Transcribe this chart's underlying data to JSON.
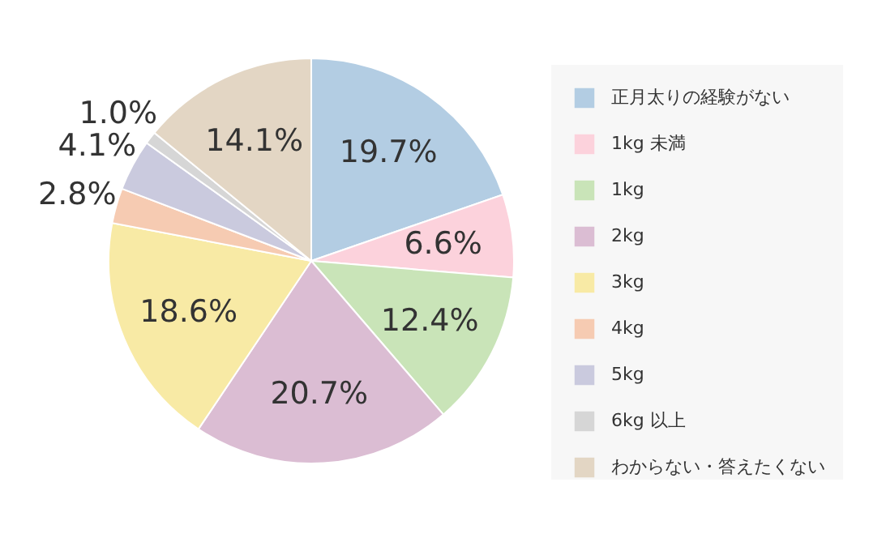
{
  "chart_data": {
    "type": "pie",
    "categories": [
      "正月太りの経験がない",
      "1kg 未満",
      "1kg",
      "2kg",
      "3kg",
      "4kg",
      "5kg",
      "6kg 以上",
      "わからない・答えたくない"
    ],
    "values": [
      19.7,
      6.6,
      12.4,
      20.7,
      18.6,
      2.8,
      4.1,
      1.0,
      14.1
    ],
    "colors": [
      "#b3cde3",
      "#fcd2dc",
      "#c9e4b8",
      "#dbbdd3",
      "#f8eaa5",
      "#f6cbb2",
      "#cacade",
      "#d6d6d6",
      "#e3d6c4"
    ],
    "value_labels": [
      "19.7%",
      "6.6%",
      "12.4%",
      "20.7%",
      "18.6%",
      "2.8%",
      "4.1%",
      "1.0%",
      "14.1%"
    ],
    "legend": "right"
  }
}
